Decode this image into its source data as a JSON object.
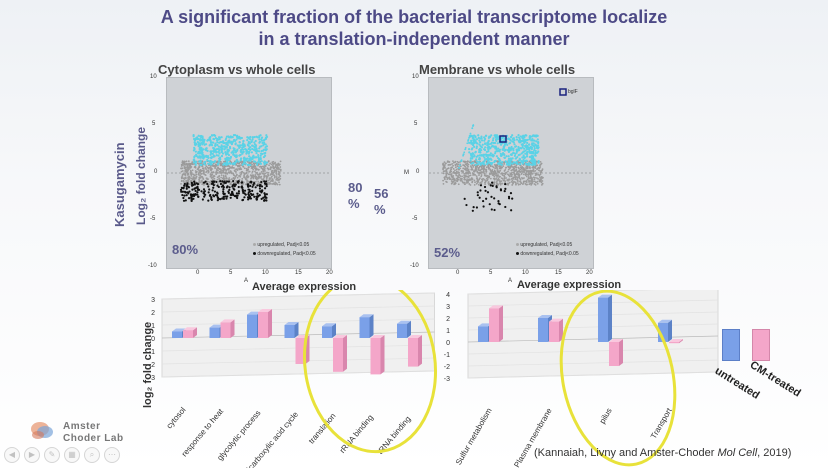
{
  "title_line1": "A significant fraction of the bacterial transcriptome localize",
  "title_line2": "in a translation-independent manner",
  "panels": {
    "left": {
      "title": "Cytoplasm vs whole cells",
      "percent": "80%",
      "yticks": [
        "10",
        "5",
        "0",
        "-5",
        "-10"
      ],
      "xticks": [
        "0",
        "5",
        "10",
        "15",
        "20"
      ],
      "legend_up": "upregulated, Padj<0.05",
      "legend_down": "downregulated, Padj<0.05",
      "xaxis_small": "A"
    },
    "right": {
      "title": "Membrane vs whole cells",
      "percent": "52%",
      "yticks": [
        "10",
        "5",
        "0",
        "-5",
        "-10"
      ],
      "xticks": [
        "0",
        "5",
        "10",
        "15",
        "20"
      ],
      "legend_up": "upregulated, Padj<0.05",
      "legend_down": "downregulated, Padj<0.05",
      "gene_label": "bglF",
      "xaxis_small": "A",
      "yaxis_small": "M"
    }
  },
  "kasugamycin": "Kasugamycin",
  "log2fc_label": "Log₂ fold change",
  "mid_percent_1a": "80",
  "mid_percent_1b": "%",
  "mid_percent_2a": "56",
  "mid_percent_2b": "%",
  "avg_expr_left": "Average expression",
  "avg_expr_right": "Average expression",
  "bar_ylabel": "log₂ fold change",
  "legend": {
    "untreated": "untreated",
    "cm_treated": "CM-treated",
    "untreated_color": "#7aa0e8",
    "cm_color": "#f4a6c9"
  },
  "citation": "(Kannaiah, Livny and Amster-Choder Mol Cell, 2019)",
  "logo_line1": "Amster",
  "logo_line2": "Choder Lab",
  "chart_data": [
    {
      "type": "bar",
      "title": "",
      "ylabel": "log₂ fold change",
      "ylim": [
        -3,
        3
      ],
      "categories": [
        "cytosol",
        "response to heat",
        "glycolytic process",
        "tricarboxylic acid cycle",
        "translation",
        "rRNA binding",
        "tRNA binding"
      ],
      "series": [
        {
          "name": "untreated",
          "values": [
            0.5,
            0.8,
            1.8,
            1.0,
            0.9,
            1.6,
            1.1
          ]
        },
        {
          "name": "CM-treated",
          "values": [
            0.6,
            1.2,
            2.0,
            -2.0,
            -2.6,
            -2.8,
            -2.2
          ]
        }
      ]
    },
    {
      "type": "bar",
      "title": "",
      "ylabel": "",
      "ylim": [
        -3,
        4
      ],
      "categories": [
        "Sulfur metabolism",
        "Plasma membrane",
        "pilus",
        "Transport"
      ],
      "series": [
        {
          "name": "untreated",
          "values": [
            1.3,
            2.0,
            3.7,
            1.6
          ]
        },
        {
          "name": "CM-treated",
          "values": [
            2.8,
            1.7,
            -2.0,
            -0.1
          ]
        }
      ]
    }
  ],
  "bar_yticks_left": [
    "3",
    "2",
    "1",
    "0",
    "-1",
    "-2",
    "-3"
  ],
  "bar_yticks_right": [
    "4",
    "3",
    "2",
    "1",
    "0",
    "-1",
    "-2",
    "-3"
  ]
}
